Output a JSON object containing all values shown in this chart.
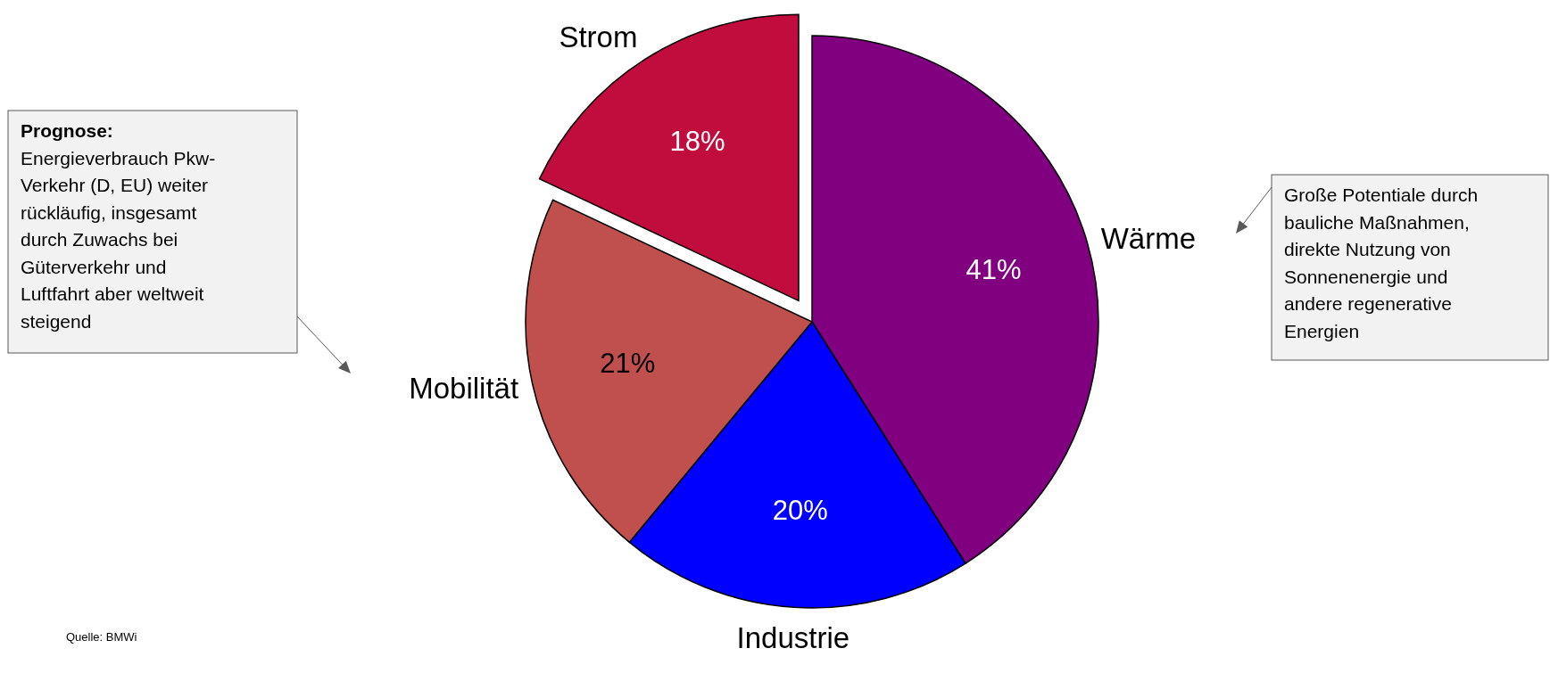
{
  "chart_data": {
    "type": "pie",
    "categories": [
      "Wärme",
      "Industrie",
      "Mobilität",
      "Strom"
    ],
    "values": [
      41,
      20,
      21,
      18
    ],
    "colors": [
      "#800080",
      "#0000ff",
      "#c0504d",
      "#c00d3d"
    ],
    "value_labels": [
      "41%",
      "20%",
      "21%",
      "18%"
    ],
    "annotations": [
      "Prognose:\nEnergieverbrauch Pkw-\nVerkehr (D, EU) weiter\nrückläufig, insgesamt\ndurch Zuwachs bei\nGüterverkehr und\nLuftfahrt aber weltweit\nsteigend",
      "Große Potentiale durch\nbauliche Maßnahmen,\ndirekte Nutzung von\nSonnenenergie und\nandere regenerative\nEnergien",
      "Quelle: BMWi"
    ]
  }
}
